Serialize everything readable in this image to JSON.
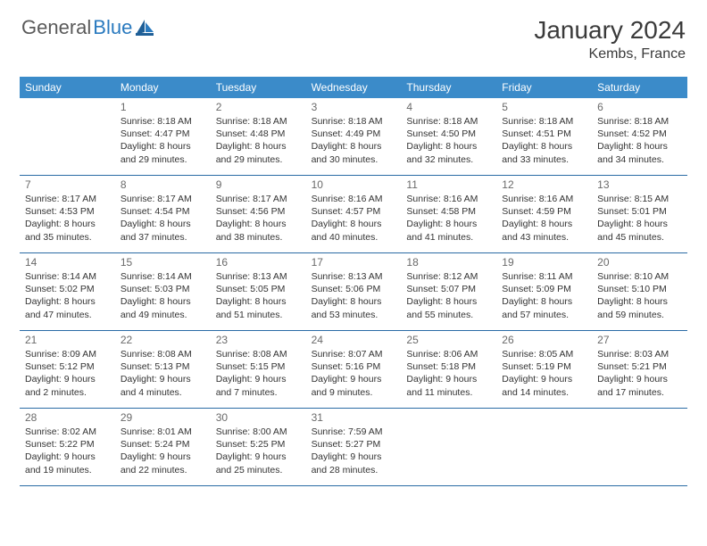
{
  "logo": {
    "word1": "General",
    "word2": "Blue"
  },
  "title": "January 2024",
  "location": "Kembs, France",
  "colors": {
    "header_bg": "#3b8bc9",
    "header_text": "#ffffff",
    "border": "#2a6ba5",
    "logo_blue": "#2a7abf",
    "text": "#333333"
  },
  "day_names": [
    "Sunday",
    "Monday",
    "Tuesday",
    "Wednesday",
    "Thursday",
    "Friday",
    "Saturday"
  ],
  "start_offset": 1,
  "days": [
    {
      "n": 1,
      "sr": "8:18 AM",
      "ss": "4:47 PM",
      "dl": "8 hours and 29 minutes."
    },
    {
      "n": 2,
      "sr": "8:18 AM",
      "ss": "4:48 PM",
      "dl": "8 hours and 29 minutes."
    },
    {
      "n": 3,
      "sr": "8:18 AM",
      "ss": "4:49 PM",
      "dl": "8 hours and 30 minutes."
    },
    {
      "n": 4,
      "sr": "8:18 AM",
      "ss": "4:50 PM",
      "dl": "8 hours and 32 minutes."
    },
    {
      "n": 5,
      "sr": "8:18 AM",
      "ss": "4:51 PM",
      "dl": "8 hours and 33 minutes."
    },
    {
      "n": 6,
      "sr": "8:18 AM",
      "ss": "4:52 PM",
      "dl": "8 hours and 34 minutes."
    },
    {
      "n": 7,
      "sr": "8:17 AM",
      "ss": "4:53 PM",
      "dl": "8 hours and 35 minutes."
    },
    {
      "n": 8,
      "sr": "8:17 AM",
      "ss": "4:54 PM",
      "dl": "8 hours and 37 minutes."
    },
    {
      "n": 9,
      "sr": "8:17 AM",
      "ss": "4:56 PM",
      "dl": "8 hours and 38 minutes."
    },
    {
      "n": 10,
      "sr": "8:16 AM",
      "ss": "4:57 PM",
      "dl": "8 hours and 40 minutes."
    },
    {
      "n": 11,
      "sr": "8:16 AM",
      "ss": "4:58 PM",
      "dl": "8 hours and 41 minutes."
    },
    {
      "n": 12,
      "sr": "8:16 AM",
      "ss": "4:59 PM",
      "dl": "8 hours and 43 minutes."
    },
    {
      "n": 13,
      "sr": "8:15 AM",
      "ss": "5:01 PM",
      "dl": "8 hours and 45 minutes."
    },
    {
      "n": 14,
      "sr": "8:14 AM",
      "ss": "5:02 PM",
      "dl": "8 hours and 47 minutes."
    },
    {
      "n": 15,
      "sr": "8:14 AM",
      "ss": "5:03 PM",
      "dl": "8 hours and 49 minutes."
    },
    {
      "n": 16,
      "sr": "8:13 AM",
      "ss": "5:05 PM",
      "dl": "8 hours and 51 minutes."
    },
    {
      "n": 17,
      "sr": "8:13 AM",
      "ss": "5:06 PM",
      "dl": "8 hours and 53 minutes."
    },
    {
      "n": 18,
      "sr": "8:12 AM",
      "ss": "5:07 PM",
      "dl": "8 hours and 55 minutes."
    },
    {
      "n": 19,
      "sr": "8:11 AM",
      "ss": "5:09 PM",
      "dl": "8 hours and 57 minutes."
    },
    {
      "n": 20,
      "sr": "8:10 AM",
      "ss": "5:10 PM",
      "dl": "8 hours and 59 minutes."
    },
    {
      "n": 21,
      "sr": "8:09 AM",
      "ss": "5:12 PM",
      "dl": "9 hours and 2 minutes."
    },
    {
      "n": 22,
      "sr": "8:08 AM",
      "ss": "5:13 PM",
      "dl": "9 hours and 4 minutes."
    },
    {
      "n": 23,
      "sr": "8:08 AM",
      "ss": "5:15 PM",
      "dl": "9 hours and 7 minutes."
    },
    {
      "n": 24,
      "sr": "8:07 AM",
      "ss": "5:16 PM",
      "dl": "9 hours and 9 minutes."
    },
    {
      "n": 25,
      "sr": "8:06 AM",
      "ss": "5:18 PM",
      "dl": "9 hours and 11 minutes."
    },
    {
      "n": 26,
      "sr": "8:05 AM",
      "ss": "5:19 PM",
      "dl": "9 hours and 14 minutes."
    },
    {
      "n": 27,
      "sr": "8:03 AM",
      "ss": "5:21 PM",
      "dl": "9 hours and 17 minutes."
    },
    {
      "n": 28,
      "sr": "8:02 AM",
      "ss": "5:22 PM",
      "dl": "9 hours and 19 minutes."
    },
    {
      "n": 29,
      "sr": "8:01 AM",
      "ss": "5:24 PM",
      "dl": "9 hours and 22 minutes."
    },
    {
      "n": 30,
      "sr": "8:00 AM",
      "ss": "5:25 PM",
      "dl": "9 hours and 25 minutes."
    },
    {
      "n": 31,
      "sr": "7:59 AM",
      "ss": "5:27 PM",
      "dl": "9 hours and 28 minutes."
    }
  ],
  "labels": {
    "sunrise": "Sunrise:",
    "sunset": "Sunset:",
    "daylight": "Daylight:"
  }
}
